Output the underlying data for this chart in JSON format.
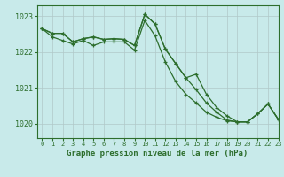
{
  "title": "Graphe pression niveau de la mer (hPa)",
  "background_color": "#c8eaea",
  "grid_color": "#b0c8c8",
  "line_color": "#2d6e2d",
  "xlim": [
    -0.5,
    23
  ],
  "ylim": [
    1019.6,
    1023.3
  ],
  "yticks": [
    1020,
    1021,
    1022,
    1023
  ],
  "xticks": [
    0,
    1,
    2,
    3,
    4,
    5,
    6,
    7,
    8,
    9,
    10,
    11,
    12,
    13,
    14,
    15,
    16,
    17,
    18,
    19,
    20,
    21,
    22,
    23
  ],
  "series": [
    [
      1022.65,
      1022.52,
      1022.52,
      1022.28,
      1022.37,
      1022.42,
      1022.35,
      1022.37,
      1022.35,
      1022.18,
      1023.05,
      1022.78,
      1022.08,
      1021.68,
      1021.28,
      1021.38,
      1020.82,
      1020.45,
      1020.22,
      1020.05,
      1020.05,
      1020.28,
      1020.55,
      1020.12
    ],
    [
      1022.65,
      1022.52,
      1022.52,
      1022.28,
      1022.37,
      1022.42,
      1022.35,
      1022.37,
      1022.35,
      1022.18,
      1023.05,
      1022.78,
      1022.08,
      1021.68,
      1021.28,
      1020.95,
      1020.58,
      1020.32,
      1020.1,
      1020.05,
      1020.05,
      1020.28,
      1020.55,
      1020.12
    ],
    [
      1022.65,
      1022.42,
      1022.32,
      1022.22,
      1022.32,
      1022.18,
      1022.28,
      1022.28,
      1022.28,
      1022.05,
      1022.88,
      1022.45,
      1021.72,
      1021.18,
      1020.82,
      1020.58,
      1020.32,
      1020.18,
      1020.08,
      1020.05,
      1020.05,
      1020.28,
      1020.55,
      1020.12
    ]
  ]
}
